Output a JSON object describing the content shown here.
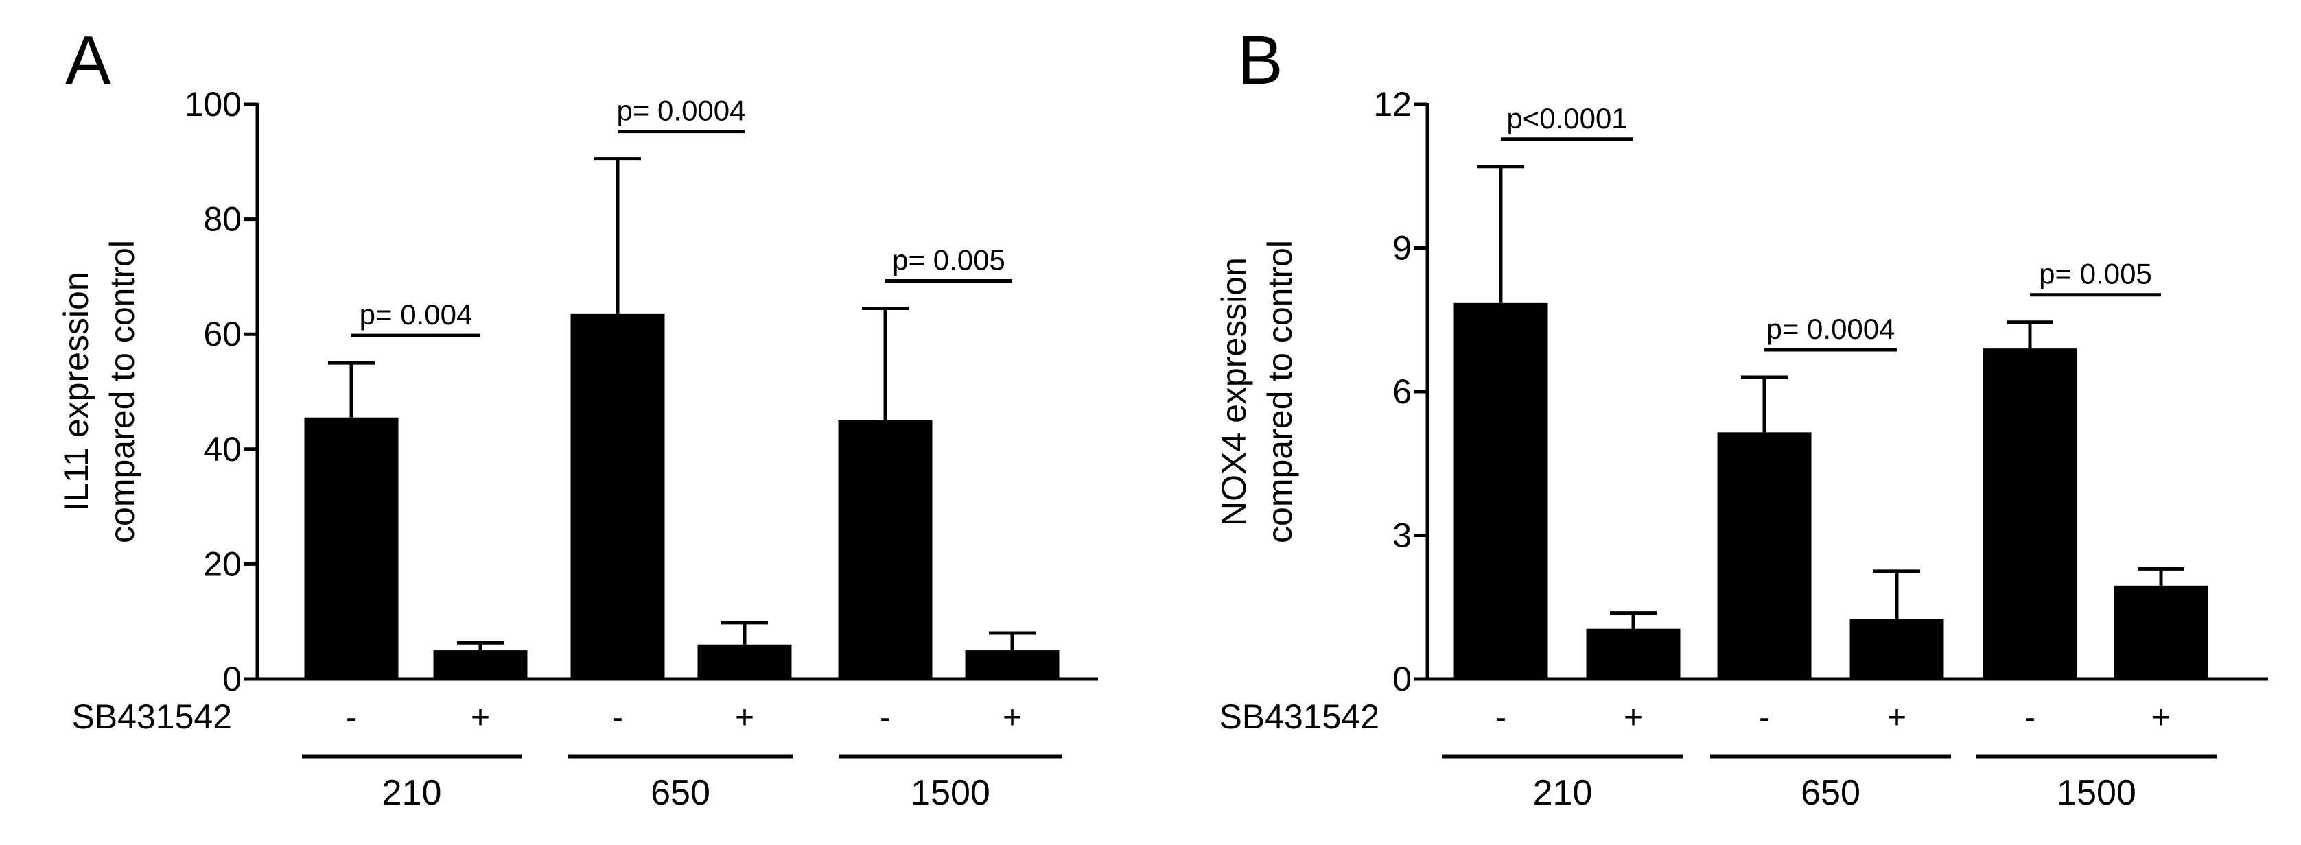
{
  "chart_data": [
    {
      "panel_label": "A",
      "type": "bar",
      "ylabel_lines": [
        "IL11 expression",
        "compared to control"
      ],
      "ylim": [
        0,
        100
      ],
      "yticks": [
        0,
        20,
        40,
        60,
        80,
        100
      ],
      "row_label": "SB431542",
      "categories": [
        "-",
        "+",
        "-",
        "+",
        "-",
        "+"
      ],
      "groups": [
        "210",
        "650",
        "1500"
      ],
      "values": [
        45.5,
        5,
        63.5,
        6,
        45,
        5
      ],
      "errors": [
        9.5,
        1.3,
        27,
        3.8,
        19.5,
        3
      ],
      "color": "#000000",
      "comparisons": [
        {
          "group": 0,
          "label": "p= 0.004"
        },
        {
          "group": 1,
          "label": "p= 0.0004"
        },
        {
          "group": 2,
          "label": "p= 0.005"
        }
      ]
    },
    {
      "panel_label": "B",
      "type": "bar",
      "ylabel_lines": [
        "NOX4 expression",
        "compared to control"
      ],
      "ylim": [
        0,
        12
      ],
      "yticks": [
        0,
        3,
        6,
        9,
        12
      ],
      "row_label": "SB431542",
      "categories": [
        "-",
        "+",
        "-",
        "+",
        "-",
        "+"
      ],
      "groups": [
        "210",
        "650",
        "1500"
      ],
      "values": [
        7.85,
        1.05,
        5.15,
        1.25,
        6.9,
        1.95
      ],
      "errors": [
        2.85,
        0.33,
        1.15,
        1.0,
        0.55,
        0.35
      ],
      "color": "#000000",
      "comparisons": [
        {
          "group": 0,
          "label": "p<0.0001"
        },
        {
          "group": 1,
          "label": "p= 0.0004"
        },
        {
          "group": 2,
          "label": "p= 0.005"
        }
      ]
    }
  ]
}
